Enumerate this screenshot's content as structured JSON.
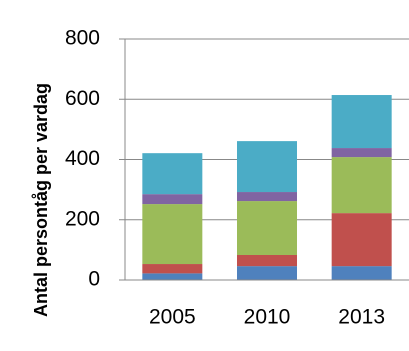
{
  "chart_data": {
    "type": "stacked-bar",
    "y_label": "Antal persontåg per vardag",
    "categories": [
      "2005",
      "2010",
      "2013"
    ],
    "series": [
      {
        "color": "#4f81bd",
        "values": [
          22,
          46,
          46
        ]
      },
      {
        "color": "#c0504d",
        "values": [
          31,
          37,
          176
        ]
      },
      {
        "color": "#9bbb59",
        "values": [
          199,
          179,
          186
        ]
      },
      {
        "color": "#8064a2",
        "values": [
          33,
          30,
          30
        ]
      },
      {
        "color": "#4bacc6",
        "values": [
          136,
          169,
          176
        ]
      }
    ],
    "ylim": [
      0,
      800
    ],
    "yticks": [
      0,
      200,
      400,
      600,
      800
    ],
    "grid": true
  }
}
